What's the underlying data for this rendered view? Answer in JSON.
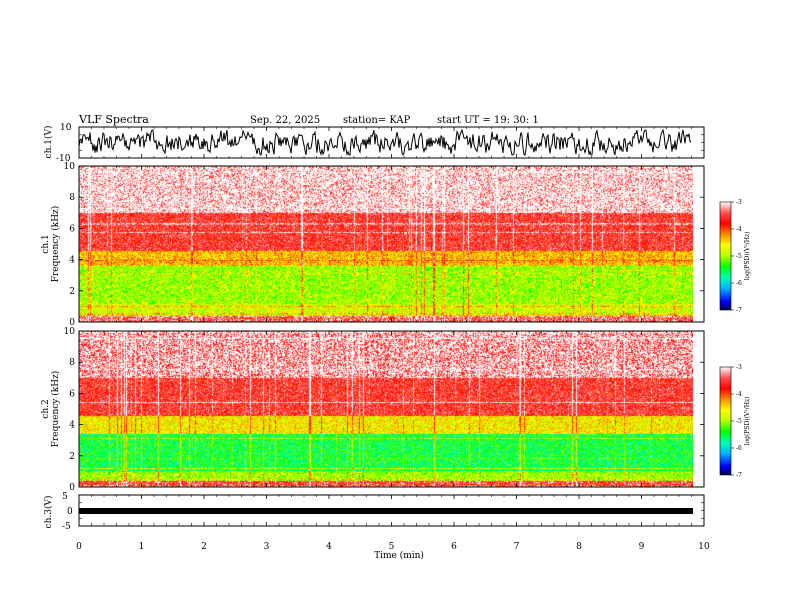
{
  "header": {
    "title": "VLF Spectra",
    "date": "Sep. 22, 2025",
    "station": "station= KAP",
    "start_ut": "start  UT =   19: 30: 1"
  },
  "colors": {
    "ramp": [
      "#00004a",
      "#0000ff",
      "#00b4ff",
      "#00ffb4",
      "#00ff00",
      "#b4ff00",
      "#ffff00",
      "#ff8c00",
      "#ff0000",
      "#ff5050",
      "#ffffff"
    ],
    "axes": "#000000",
    "trace": "#000000"
  },
  "chart_data": [
    {
      "type": "line",
      "name": "ch1-waveform",
      "ylabel": "ch.1(V)",
      "ylim": [
        -10,
        10
      ],
      "yticks": [
        "10",
        "-10"
      ],
      "x_range_min": [
        0,
        9.8
      ],
      "approx_amplitude_v": [
        -8,
        8
      ]
    },
    {
      "type": "heatmap",
      "name": "ch1-spectrogram",
      "ylabel": "ch.1\nFrequency (kHz)",
      "ylim": [
        0,
        10
      ],
      "yticks": [
        "0",
        "2",
        "4",
        "6",
        "8",
        "10"
      ],
      "x_range_min": [
        0,
        9.8
      ],
      "dominant_level_by_band_khz": [
        {
          "band": [
            0,
            0.4
          ],
          "level": -3.6
        },
        {
          "band": [
            0.4,
            1.2
          ],
          "level": -4.8
        },
        {
          "band": [
            1.2,
            3.6
          ],
          "level": -5.0
        },
        {
          "band": [
            3.6,
            4.6
          ],
          "level": -4.4
        },
        {
          "band": [
            4.6,
            7.0
          ],
          "level": -3.6
        },
        {
          "band": [
            7.0,
            10.0
          ],
          "level": -3.2
        }
      ],
      "colorbar": {
        "label": "log(PSD)(V²/Hz)",
        "ticks": [
          "-3",
          "-4",
          "-5",
          "-6",
          "-7"
        ],
        "range": [
          -7,
          -3
        ]
      }
    },
    {
      "type": "heatmap",
      "name": "ch2-spectrogram",
      "ylabel": "ch.2\nFrequency (kHz)",
      "ylim": [
        0,
        10
      ],
      "yticks": [
        "0",
        "2",
        "4",
        "6",
        "8",
        "10"
      ],
      "x_range_min": [
        0,
        9.8
      ],
      "dominant_level_by_band_khz": [
        {
          "band": [
            0,
            0.4
          ],
          "level": -3.8
        },
        {
          "band": [
            0.4,
            1.0
          ],
          "level": -5.0
        },
        {
          "band": [
            1.0,
            3.4
          ],
          "level": -5.5
        },
        {
          "band": [
            3.4,
            4.6
          ],
          "level": -4.6
        },
        {
          "band": [
            4.6,
            7.0
          ],
          "level": -3.6
        },
        {
          "band": [
            7.0,
            10.0
          ],
          "level": -3.4
        }
      ],
      "colorbar": {
        "label": "log(PSD)(V²/Hz)",
        "ticks": [
          "-3",
          "-4",
          "-5",
          "-6",
          "-7"
        ],
        "range": [
          -7,
          -3
        ]
      }
    },
    {
      "type": "line",
      "name": "ch3-waveform",
      "ylabel": "ch.3(V)",
      "ylim": [
        -5,
        5
      ],
      "yticks": [
        "5",
        "0",
        "-5"
      ],
      "level_v": 0,
      "x_range_min": [
        0,
        9.8
      ]
    }
  ],
  "x_axis": {
    "label": "Time (min)",
    "ticks": [
      "0",
      "1",
      "2",
      "3",
      "4",
      "5",
      "6",
      "7",
      "8",
      "9",
      "10"
    ],
    "range": [
      0,
      10
    ]
  }
}
